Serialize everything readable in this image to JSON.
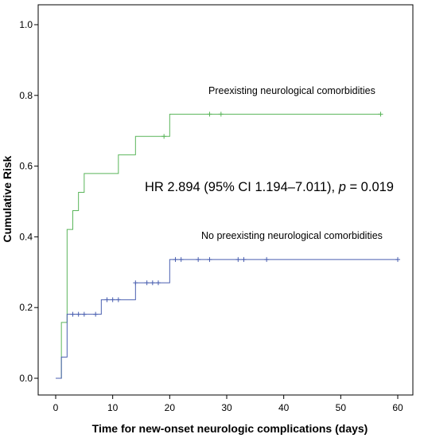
{
  "chart_data": {
    "type": "line",
    "xlabel": "Time for new-onset neurologic complications (days)",
    "ylabel": "Cumulative Risk",
    "xlim": [
      -2.5,
      63
    ],
    "ylim": [
      -0.045,
      1.04
    ],
    "xticks": [
      0,
      10,
      20,
      30,
      40,
      50,
      60
    ],
    "yticks": [
      0.0,
      0.2,
      0.4,
      0.6,
      0.8,
      1.0
    ],
    "ytick_labels": [
      "0.0",
      "0.2",
      "0.4",
      "0.6",
      "0.8",
      "1.0"
    ],
    "grid": false,
    "legend": "none",
    "series": [
      {
        "name": "Preexisting neurological comorbidities",
        "color": "#5ab55a",
        "steps": [
          [
            0,
            0
          ],
          [
            1,
            0.158
          ],
          [
            2,
            0.421
          ],
          [
            3,
            0.474
          ],
          [
            4,
            0.526
          ],
          [
            5,
            0.579
          ],
          [
            11,
            0.632
          ],
          [
            14,
            0.684
          ],
          [
            20,
            0.747
          ],
          [
            57,
            0.747
          ]
        ],
        "censored": [
          [
            19,
            0.684
          ],
          [
            27,
            0.747
          ],
          [
            29,
            0.747
          ],
          [
            57,
            0.747
          ]
        ]
      },
      {
        "name": "No preexisting neurological comorbidities",
        "color": "#4a5fb0",
        "steps": [
          [
            0,
            0
          ],
          [
            1,
            0.06
          ],
          [
            2,
            0.181
          ],
          [
            8,
            0.222
          ],
          [
            14,
            0.27
          ],
          [
            20,
            0.336
          ],
          [
            60,
            0.336
          ]
        ],
        "censored": [
          [
            3,
            0.181
          ],
          [
            4,
            0.181
          ],
          [
            5,
            0.181
          ],
          [
            7,
            0.181
          ],
          [
            9,
            0.222
          ],
          [
            10,
            0.222
          ],
          [
            11,
            0.222
          ],
          [
            14,
            0.27
          ],
          [
            16,
            0.27
          ],
          [
            17,
            0.27
          ],
          [
            18,
            0.27
          ],
          [
            21,
            0.336
          ],
          [
            22,
            0.336
          ],
          [
            25,
            0.336
          ],
          [
            27,
            0.336
          ],
          [
            32,
            0.336
          ],
          [
            33,
            0.336
          ],
          [
            37,
            0.336
          ],
          [
            60,
            0.336
          ]
        ]
      }
    ],
    "annotation": {
      "prefix": "HR 2.894 (95% CI 1.194–7.011), ",
      "p_symbol": "p",
      "suffix": " = 0.019"
    }
  }
}
